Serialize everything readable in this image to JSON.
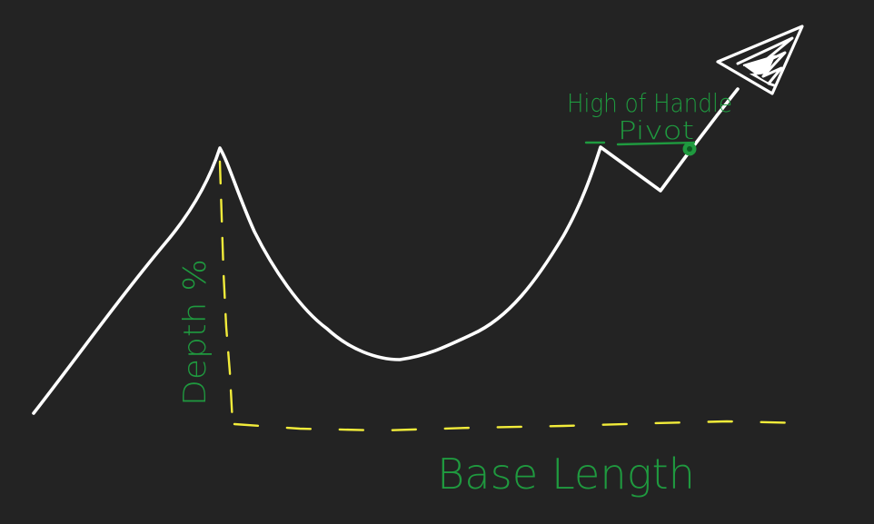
{
  "colors": {
    "background": "#232323",
    "price_line": "#ffffff",
    "measure_line": "#f2ec3a",
    "annotation": "#1f9a3f"
  },
  "labels": {
    "depth": "Depth %",
    "base": "Base Length",
    "high_of_handle": "High of Handle",
    "pivot": "Pivot"
  },
  "icons": {
    "arrow": "arrowhead-icon",
    "pivot_marker": "pivot-dot-icon"
  }
}
